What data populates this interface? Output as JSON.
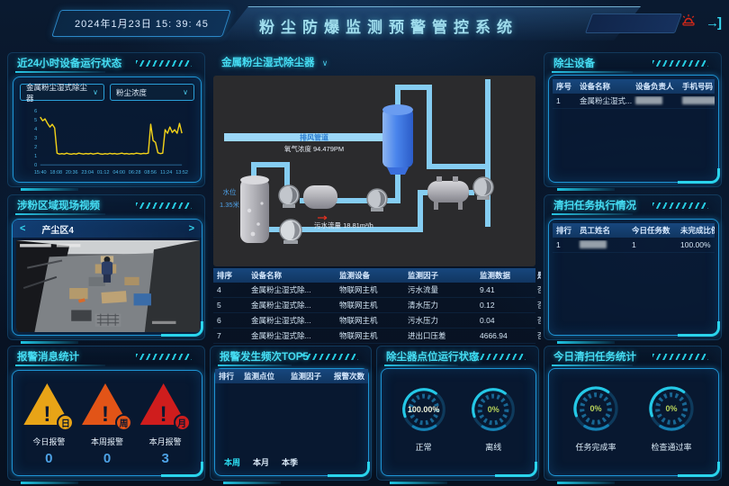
{
  "icons": {
    "chevron_down": "∨",
    "prev": "<",
    "next": ">",
    "exit": "→]"
  },
  "header": {
    "datetime": "2024年1月23日  15: 39: 45",
    "title": "粉尘防爆监测预警管控系统"
  },
  "left": {
    "status_panel": {
      "title": "近24小时设备运行状态",
      "device_dropdown": "金属粉尘湿式除尘器",
      "metric_dropdown": "粉尘浓度",
      "chart": {
        "type": "line",
        "color": "#f2d219",
        "ylim": [
          0,
          6
        ],
        "y_ticks": [
          0,
          1,
          2,
          3,
          4,
          5,
          6
        ],
        "x_labels": [
          "15:40",
          "18:08",
          "20:36",
          "23:04",
          "01:12",
          "04:00",
          "06:28",
          "08:56",
          "11:24",
          "13:52"
        ],
        "values": [
          5.3,
          4.9,
          5.1,
          4.6,
          4.2,
          4.5,
          4.1,
          1.3,
          1.2,
          1.25,
          1.2,
          1.3,
          1.22,
          1.18,
          1.25,
          1.2,
          1.3,
          1.24,
          1.2,
          1.26,
          1.22,
          1.28,
          1.2,
          1.25,
          1.3,
          1.22,
          1.18,
          1.24,
          1.2,
          1.28,
          1.22,
          1.26,
          1.2,
          1.24,
          1.3,
          1.22,
          1.26,
          1.2,
          1.25,
          1.22,
          1.3,
          1.26,
          1.22,
          1.28,
          1.24,
          1.3,
          4.5,
          2.7,
          2.5,
          1.35,
          1.25,
          1.3,
          3.9,
          3.5,
          4.2,
          3.6,
          3.9,
          3.5,
          4.6,
          3.5
        ]
      }
    },
    "video_panel": {
      "title": "涉粉区域现场视频",
      "camera_label": "产尘区4"
    },
    "alarm_panel": {
      "title": "报警消息统计",
      "items": [
        {
          "badge": "日",
          "label": "今日报警",
          "value": "0",
          "color": "#e8a417"
        },
        {
          "badge": "周",
          "label": "本周报警",
          "value": "0",
          "color": "#e25417"
        },
        {
          "badge": "月",
          "label": "本月报警",
          "value": "3",
          "color": "#cf1d1d"
        }
      ]
    }
  },
  "center": {
    "scada": {
      "title": "金属粉尘湿式除尘器",
      "duct_label": "排风管道",
      "oxygen_label": "氧气浓度 94.479PM",
      "level_label": "水位",
      "level_value": "1.35米",
      "flow_label": "污水流量 18.81m³/h"
    },
    "monitor_table": {
      "headers": [
        "排序",
        "设备名称",
        "监测设备",
        "监测因子",
        "监测数据",
        "是否报警"
      ],
      "rows": [
        [
          "4",
          "金属粉尘湿式除...",
          "物联网主机",
          "污水流量",
          "9.41",
          "否"
        ],
        [
          "5",
          "金属粉尘湿式除...",
          "物联网主机",
          "清水压力",
          "0.12",
          "否"
        ],
        [
          "6",
          "金属粉尘湿式除...",
          "物联网主机",
          "污水压力",
          "0.04",
          "否"
        ],
        [
          "7",
          "金属粉尘湿式除...",
          "物联网主机",
          "进出口压差",
          "4666.94",
          "否"
        ]
      ]
    },
    "top5_panel": {
      "title": "报警发生频次TOP5",
      "headers": [
        "排行",
        "监测点位",
        "监测因子",
        "报警次数"
      ],
      "rows": [],
      "tabs": [
        "本周",
        "本月",
        "本季"
      ],
      "active_tab": "本周"
    },
    "point_status_panel": {
      "title": "除尘器点位运行状态",
      "gauges": [
        {
          "value": "100.00%",
          "label": "正常",
          "color": "#eef2da",
          "percent": 100
        },
        {
          "value": "0%",
          "label": "离线",
          "color": "#b8d35a",
          "percent": 0
        }
      ]
    }
  },
  "right": {
    "devices_panel": {
      "title": "除尘设备",
      "headers": [
        "序号",
        "设备名称",
        "设备负责人",
        "手机号码"
      ],
      "rows": [
        [
          "1",
          "金属粉尘湿式...",
          {
            "redacted": true
          },
          {
            "redacted": true,
            "wide": true
          }
        ]
      ]
    },
    "tasks_panel": {
      "title": "清扫任务执行情况",
      "headers": [
        "排行",
        "员工姓名",
        "今日任务数",
        "未完成比例"
      ],
      "rows": [
        [
          "1",
          {
            "redacted": true
          },
          "1",
          "100.00%"
        ]
      ]
    },
    "today_panel": {
      "title": "今日清扫任务统计",
      "gauges": [
        {
          "value": "0%",
          "label": "任务完成率",
          "color": "#b8d35a",
          "percent": 0
        },
        {
          "value": "0%",
          "label": "检查通过率",
          "color": "#b8d35a",
          "percent": 0
        }
      ]
    }
  }
}
